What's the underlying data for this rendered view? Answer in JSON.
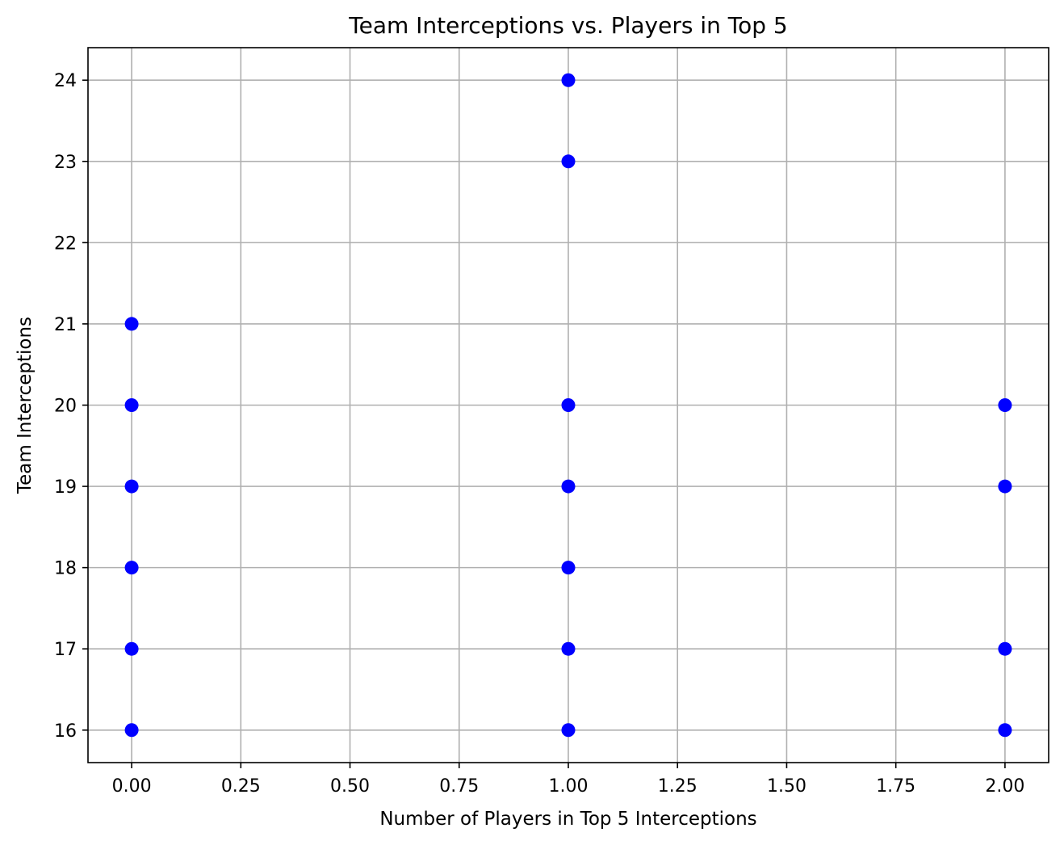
{
  "chart_data": {
    "type": "scatter",
    "title": "Team Interceptions vs. Players in Top 5",
    "xlabel": "Number of Players in Top 5 Interceptions",
    "ylabel": "Team Interceptions",
    "xlim": [
      -0.1,
      2.1
    ],
    "ylim": [
      15.6,
      24.4
    ],
    "xticks": [
      0.0,
      0.25,
      0.5,
      0.75,
      1.0,
      1.25,
      1.5,
      1.75,
      2.0
    ],
    "xtick_labels": [
      "0.00",
      "0.25",
      "0.50",
      "0.75",
      "1.00",
      "1.25",
      "1.50",
      "1.75",
      "2.00"
    ],
    "yticks": [
      16,
      17,
      18,
      19,
      20,
      21,
      22,
      23,
      24
    ],
    "ytick_labels": [
      "16",
      "17",
      "18",
      "19",
      "20",
      "21",
      "22",
      "23",
      "24"
    ],
    "grid": true,
    "marker_color": "#0000ff",
    "grid_color": "#b0b0b0",
    "points": [
      {
        "x": 0,
        "y": 21
      },
      {
        "x": 0,
        "y": 20
      },
      {
        "x": 0,
        "y": 19
      },
      {
        "x": 0,
        "y": 18
      },
      {
        "x": 0,
        "y": 17
      },
      {
        "x": 0,
        "y": 16
      },
      {
        "x": 1,
        "y": 24
      },
      {
        "x": 1,
        "y": 23
      },
      {
        "x": 1,
        "y": 20
      },
      {
        "x": 1,
        "y": 19
      },
      {
        "x": 1,
        "y": 18
      },
      {
        "x": 1,
        "y": 17
      },
      {
        "x": 1,
        "y": 16
      },
      {
        "x": 2,
        "y": 20
      },
      {
        "x": 2,
        "y": 19
      },
      {
        "x": 2,
        "y": 17
      },
      {
        "x": 2,
        "y": 16
      }
    ]
  }
}
